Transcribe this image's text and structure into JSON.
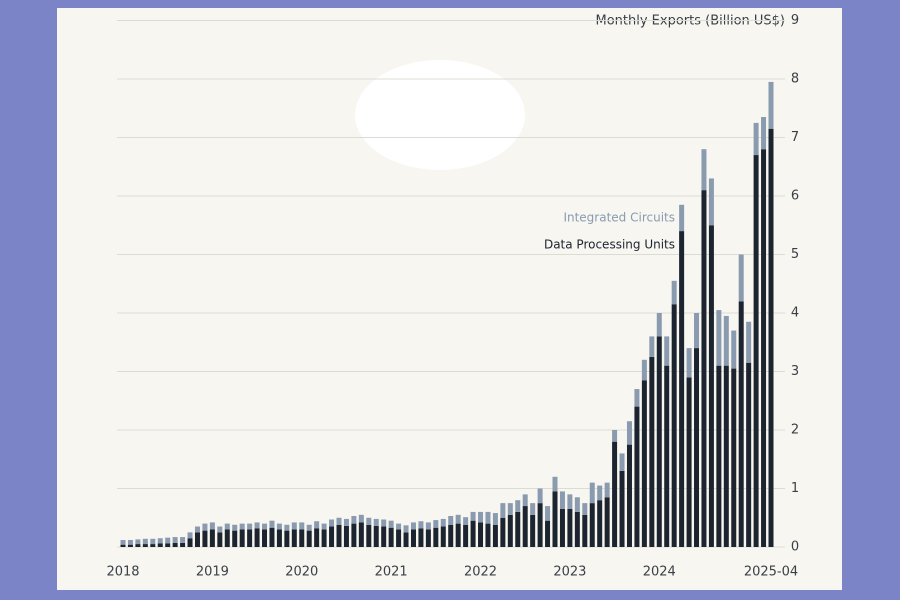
{
  "chart_data": {
    "type": "stacked-bar",
    "y_label": "Monthly Exports (Billion US$)",
    "categories": [
      "2018",
      null,
      null,
      null,
      null,
      null,
      null,
      null,
      null,
      null,
      null,
      null,
      "2019",
      null,
      null,
      null,
      null,
      null,
      null,
      null,
      null,
      null,
      null,
      null,
      "2020",
      null,
      null,
      null,
      null,
      null,
      null,
      null,
      null,
      null,
      null,
      null,
      "2021",
      null,
      null,
      null,
      null,
      null,
      null,
      null,
      null,
      null,
      null,
      null,
      "2022",
      null,
      null,
      null,
      null,
      null,
      null,
      null,
      null,
      null,
      null,
      null,
      "2023",
      null,
      null,
      null,
      null,
      null,
      null,
      null,
      null,
      null,
      null,
      null,
      "2024",
      null,
      null,
      null,
      null,
      null,
      null,
      null,
      null,
      null,
      null,
      null,
      null,
      null,
      null,
      "2025-04"
    ],
    "series": [
      {
        "name": "Data Processing Units",
        "color": "#1c2430",
        "values": [
          0.04,
          0.04,
          0.05,
          0.05,
          0.05,
          0.06,
          0.06,
          0.07,
          0.07,
          0.15,
          0.25,
          0.28,
          0.3,
          0.25,
          0.3,
          0.28,
          0.3,
          0.3,
          0.32,
          0.3,
          0.33,
          0.3,
          0.28,
          0.3,
          0.3,
          0.28,
          0.32,
          0.3,
          0.35,
          0.38,
          0.36,
          0.4,
          0.42,
          0.38,
          0.36,
          0.35,
          0.33,
          0.3,
          0.25,
          0.3,
          0.32,
          0.3,
          0.33,
          0.35,
          0.38,
          0.4,
          0.38,
          0.45,
          0.42,
          0.4,
          0.38,
          0.5,
          0.55,
          0.6,
          0.7,
          0.55,
          0.75,
          0.45,
          0.95,
          0.65,
          0.65,
          0.6,
          0.55,
          0.75,
          0.8,
          0.85,
          1.8,
          1.3,
          1.75,
          2.4,
          2.85,
          3.25,
          3.6,
          3.1,
          4.15,
          5.4,
          2.9,
          3.4,
          6.1,
          5.5,
          3.1,
          3.1,
          3.05,
          4.2,
          3.15,
          6.7,
          6.8,
          7.15
        ]
      },
      {
        "name": "Integrated Circuits",
        "color": "#8a9bb0",
        "values": [
          0.08,
          0.08,
          0.08,
          0.09,
          0.09,
          0.09,
          0.1,
          0.1,
          0.1,
          0.1,
          0.1,
          0.12,
          0.12,
          0.1,
          0.1,
          0.1,
          0.1,
          0.1,
          0.1,
          0.1,
          0.12,
          0.1,
          0.1,
          0.12,
          0.12,
          0.1,
          0.12,
          0.1,
          0.12,
          0.12,
          0.12,
          0.13,
          0.13,
          0.12,
          0.12,
          0.12,
          0.12,
          0.1,
          0.12,
          0.12,
          0.12,
          0.12,
          0.13,
          0.13,
          0.15,
          0.15,
          0.13,
          0.15,
          0.18,
          0.2,
          0.2,
          0.25,
          0.2,
          0.2,
          0.2,
          0.2,
          0.25,
          0.25,
          0.25,
          0.3,
          0.25,
          0.25,
          0.2,
          0.35,
          0.25,
          0.25,
          0.2,
          0.3,
          0.4,
          0.3,
          0.35,
          0.35,
          0.4,
          0.5,
          0.4,
          0.45,
          0.5,
          0.6,
          0.7,
          0.8,
          0.95,
          0.85,
          0.65,
          0.8,
          0.7,
          0.55,
          0.55,
          0.8
        ]
      }
    ],
    "ylim": [
      0,
      9
    ],
    "yticks": [
      0,
      1,
      2,
      3,
      4,
      5,
      6,
      7,
      8,
      9
    ],
    "grid": true
  }
}
